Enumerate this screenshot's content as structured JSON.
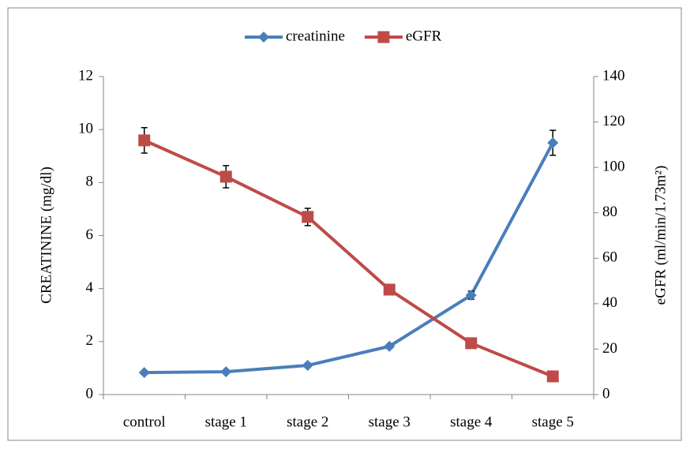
{
  "chart_data": {
    "type": "line",
    "categories": [
      "control",
      "stage 1",
      "stage 2",
      "stage 3",
      "stage 4",
      "stage 5"
    ],
    "series": [
      {
        "name": "creatinine",
        "color": "#4a7ebb",
        "marker": "diamond",
        "axis": "y",
        "values": [
          0.83,
          0.86,
          1.1,
          1.82,
          3.75,
          9.5
        ],
        "errors": [
          0.05,
          0.05,
          0.08,
          0.08,
          0.15,
          0.47
        ]
      },
      {
        "name": "eGFR",
        "color": "#be4b48",
        "marker": "square",
        "axis": "y2",
        "values": [
          111.9,
          95.9,
          78.2,
          46.2,
          22.6,
          8
        ],
        "errors": [
          5.6,
          4.9,
          3.8,
          1,
          1,
          1
        ]
      }
    ],
    "ylabel": "CREATININE (mg/dl)",
    "y2label": "eGFR (ml/min/1.73m²)",
    "ylim": [
      0,
      12
    ],
    "yticks": [
      0,
      2,
      4,
      6,
      8,
      10,
      12
    ],
    "y2lim": [
      0,
      140
    ],
    "y2ticks": [
      0,
      20,
      40,
      60,
      80,
      100,
      120,
      140
    ],
    "grid": false,
    "legend": "top"
  }
}
